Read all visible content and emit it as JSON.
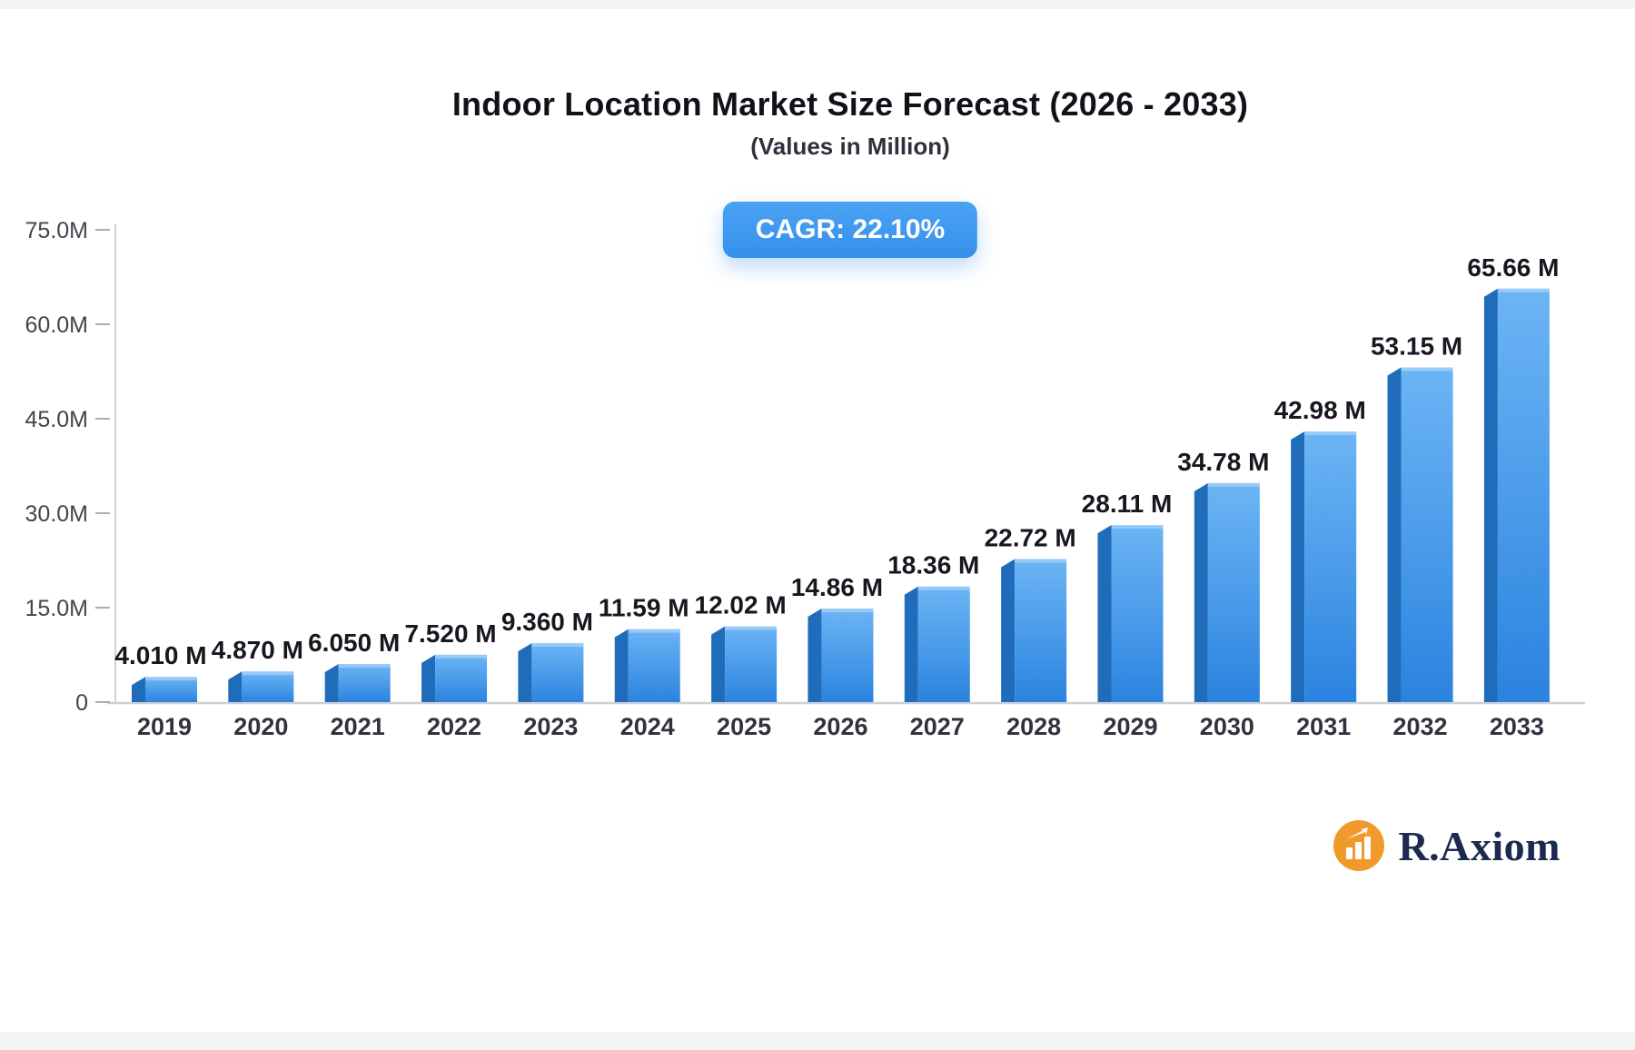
{
  "header": {
    "title": "Indoor Location Market Size Forecast (2026 - 2033)",
    "subtitle": "(Values in Million)",
    "cagr_label": "CAGR: 22.10%"
  },
  "footer": {
    "brand": "R.Axiom"
  },
  "colors": {
    "bar_front_top": "#6cb5f5",
    "bar_front_bottom": "#2b83df",
    "bar_side": "#1f6cba",
    "bar_top_highlight": "rgba(255,255,255,0.3)",
    "axis": "#cdd0d6",
    "tick_dash": "#a8adb5",
    "y_label": "#44444e",
    "x_label": "#32323e",
    "value_label": "#17171f",
    "badge_blue": "#3e97ef",
    "brand_orange": "#F09A2B",
    "brand_navy": "#1c2950"
  },
  "chart_data": {
    "type": "bar",
    "title": "Indoor Location Market Size Forecast (2026 - 2033)",
    "subtitle": "(Values in Million)",
    "annotation": "CAGR: 22.10%",
    "unit": "Million (M)",
    "categories": [
      "2019",
      "2020",
      "2021",
      "2022",
      "2023",
      "2024",
      "2025",
      "2026",
      "2027",
      "2028",
      "2029",
      "2030",
      "2031",
      "2032",
      "2033"
    ],
    "values": [
      4.01,
      4.87,
      6.05,
      7.52,
      9.36,
      11.59,
      12.02,
      14.86,
      18.36,
      22.72,
      28.11,
      34.78,
      42.98,
      53.15,
      65.66
    ],
    "value_labels": [
      "4.010 M",
      "4.870 M",
      "6.050 M",
      "7.520 M",
      "9.360 M",
      "11.59 M",
      "12.02 M",
      "14.86 M",
      "18.36 M",
      "22.72 M",
      "28.11 M",
      "34.78 M",
      "42.98 M",
      "53.15 M",
      "65.66 M"
    ],
    "ylabel_ticks": [
      "0",
      "15.0M",
      "30.0M",
      "45.0M",
      "60.0M",
      "75.0M"
    ],
    "ytick_values": [
      0,
      15,
      30,
      45,
      60,
      75
    ],
    "ylim": [
      0,
      75
    ],
    "xlabel": "",
    "ylabel": "",
    "grid": false,
    "legend_position": "none"
  }
}
